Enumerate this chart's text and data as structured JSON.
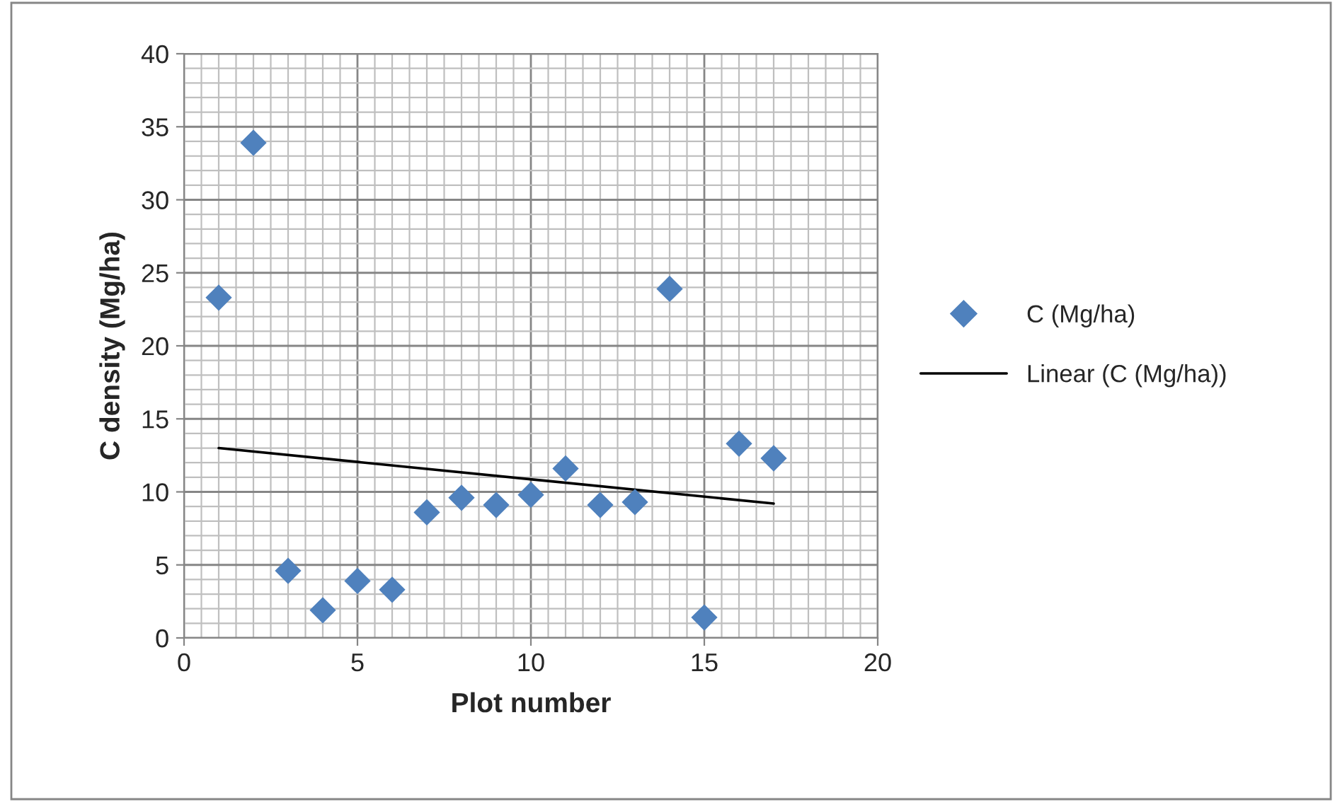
{
  "chart_data": {
    "type": "scatter",
    "xlabel": "Plot number",
    "ylabel": "C density (Mg/ha)",
    "series": [
      {
        "name": "C (Mg/ha)",
        "marker": "diamond",
        "color": "#4f81bd",
        "x": [
          1,
          2,
          3,
          4,
          5,
          6,
          7,
          8,
          9,
          10,
          11,
          12,
          13,
          14,
          15,
          16,
          17
        ],
        "values": [
          23.3,
          33.9,
          4.6,
          1.9,
          3.9,
          3.3,
          8.6,
          9.6,
          9.1,
          9.8,
          11.6,
          9.1,
          9.3,
          23.9,
          1.4,
          13.3,
          12.3
        ]
      },
      {
        "name": "Linear (C (Mg/ha))",
        "type": "line",
        "marker": "none",
        "color": "#000000",
        "x": [
          1,
          17
        ],
        "values": [
          13.0,
          9.2
        ]
      }
    ],
    "xlim": [
      0,
      20
    ],
    "xticks": [
      0,
      5,
      10,
      15,
      20
    ],
    "ylim": [
      0,
      40
    ],
    "yticks": [
      0,
      5,
      10,
      15,
      20,
      25,
      30,
      35,
      40
    ],
    "grid": true,
    "legend": "right"
  }
}
